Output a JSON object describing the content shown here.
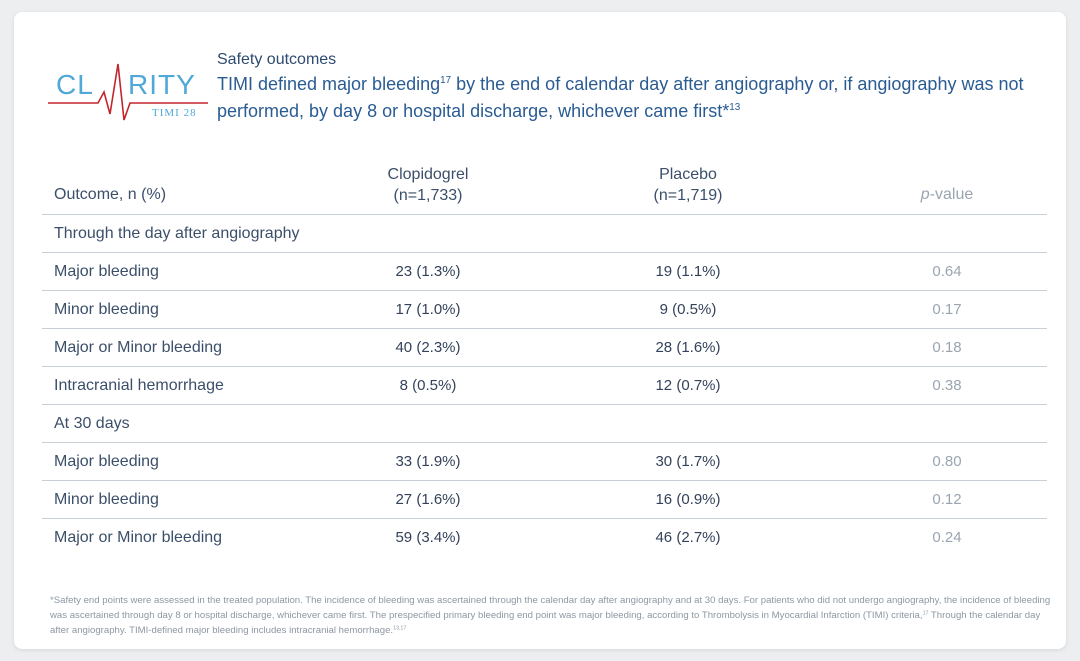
{
  "logo": {
    "text_left": "CL",
    "text_right": "RITY",
    "subtext": "TIMI 28",
    "color_text": "#4fa8d6",
    "color_line": "#c0272d"
  },
  "header": {
    "label": "Safety outcomes",
    "desc_part1": "TIMI defined major bleeding",
    "desc_sup1": "17",
    "desc_part2": " by the end of calendar day after angiography or, if angiography was not performed, by day 8 or hospital discharge, whichever came first*",
    "desc_sup2": "13"
  },
  "table": {
    "col_outcome": "Outcome, n (%)",
    "col_clop_name": "Clopidogrel",
    "col_clop_n": "(n=1,733)",
    "col_plac_name": "Placebo",
    "col_plac_n": "(n=1,719)",
    "col_p_italic": "p",
    "col_p_rest": "-value",
    "rows": [
      {
        "outcome": "Through the day after angiography",
        "clop": "",
        "plac": "",
        "p": ""
      },
      {
        "outcome": "Major bleeding",
        "clop": "23 (1.3%)",
        "plac": "19 (1.1%)",
        "p": "0.64"
      },
      {
        "outcome": "Minor bleeding",
        "clop": "17 (1.0%)",
        "plac": "9 (0.5%)",
        "p": "0.17"
      },
      {
        "outcome": "Major or Minor bleeding",
        "clop": "40 (2.3%)",
        "plac": "28 (1.6%)",
        "p": "0.18"
      },
      {
        "outcome": "Intracranial hemorrhage",
        "clop": "8 (0.5%)",
        "plac": "12 (0.7%)",
        "p": "0.38"
      },
      {
        "outcome": "At 30 days",
        "clop": "",
        "plac": "",
        "p": ""
      },
      {
        "outcome": "Major bleeding",
        "clop": "33 (1.9%)",
        "plac": "30 (1.7%)",
        "p": "0.80"
      },
      {
        "outcome": "Minor bleeding",
        "clop": "27 (1.6%)",
        "plac": "16 (0.9%)",
        "p": "0.12"
      },
      {
        "outcome": "Major or Minor bleeding",
        "clop": "59 (3.4%)",
        "plac": "46 (2.7%)",
        "p": "0.24"
      }
    ]
  },
  "footnote": {
    "part1": "*Safety end points were assessed in the treated population. The incidence of bleeding was ascertained through the calendar day after angiography and at 30 days. For patients who did not undergo angiography, the incidence of bleeding was ascertained through day 8 or hospital discharge, whichever came first. The prespecified primary bleeding end point was major bleeding, according to Thrombolysis in Myocardial Infarction (TIMI) criteria,",
    "sup1": "17",
    "part2": " Through the calendar day after angiography. TIMI-defined major bleeding includes intracranial hemorrhage.",
    "sup2": "13,17"
  }
}
